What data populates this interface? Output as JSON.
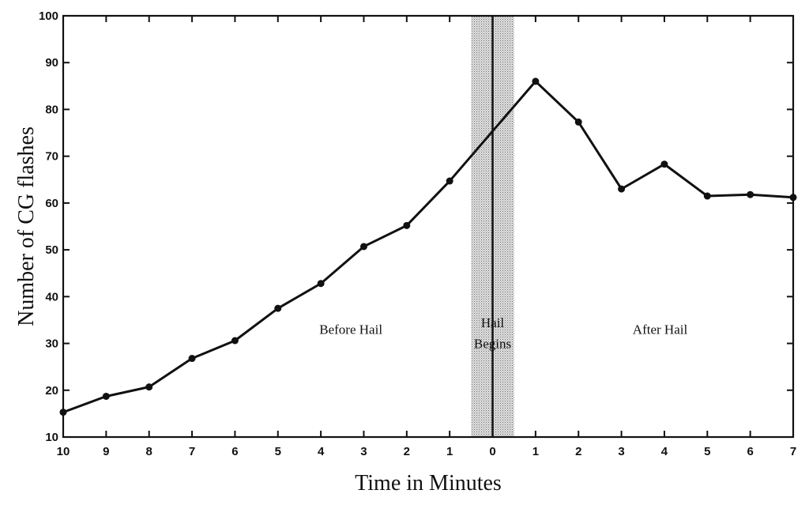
{
  "chart_data": {
    "type": "line",
    "xlabel": "Time in Minutes",
    "ylabel": "Number of CG flashes",
    "ylim": [
      10,
      100
    ],
    "xlim": [
      -10,
      7
    ],
    "x_ticks": [
      -10,
      -9,
      -8,
      -7,
      -6,
      -5,
      -4,
      -3,
      -2,
      -1,
      0,
      1,
      2,
      3,
      4,
      5,
      6,
      7
    ],
    "x_tick_labels": [
      "10",
      "9",
      "8",
      "7",
      "6",
      "5",
      "4",
      "3",
      "2",
      "1",
      "0",
      "1",
      "2",
      "3",
      "4",
      "5",
      "6",
      "7"
    ],
    "y_ticks": [
      10,
      20,
      30,
      40,
      50,
      60,
      70,
      80,
      90,
      100
    ],
    "y_tick_labels": [
      "10",
      "20",
      "30",
      "40",
      "50",
      "60",
      "70",
      "80",
      "90",
      "100"
    ],
    "grid": false,
    "series": [
      {
        "x": [
          -10,
          -9,
          -8,
          -7,
          -6,
          -5,
          -4,
          -3,
          -2,
          -1,
          1,
          2,
          3,
          4,
          5,
          6,
          7
        ],
        "values": [
          15.3,
          18.7,
          20.7,
          26.8,
          30.6,
          37.5,
          42.8,
          50.7,
          55.2,
          64.7,
          86.0,
          77.3,
          63.0,
          68.3,
          61.5,
          61.8,
          61.2
        ]
      }
    ],
    "shaded_region": {
      "x_start": -0.5,
      "x_end": 0.5,
      "color": "#c4c4c4"
    },
    "annotations": [
      {
        "text": "Before Hail",
        "x": -3.3,
        "y": 32
      },
      {
        "text": "Hail",
        "x": 0,
        "y": 33.5
      },
      {
        "text": "Begins",
        "x": 0,
        "y": 29
      },
      {
        "text": "After Hail",
        "x": 3.9,
        "y": 32
      }
    ]
  }
}
